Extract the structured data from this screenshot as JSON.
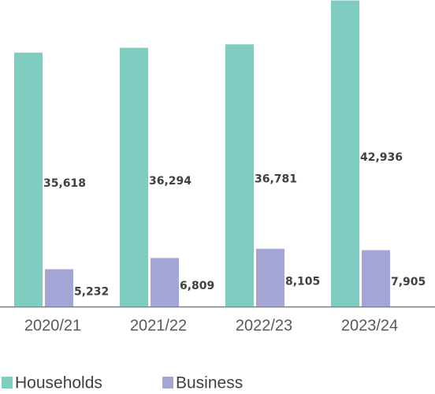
{
  "chart_data": {
    "type": "bar",
    "categories": [
      "2020/21",
      "2021/22",
      "2022/23",
      "2023/24"
    ],
    "series": [
      {
        "name": "Households",
        "color": "#7fcdc1",
        "values": [
          35618,
          36294,
          36781,
          42936
        ],
        "value_labels": [
          "35,618",
          "36,294",
          "36,781",
          "42,936"
        ]
      },
      {
        "name": "Business",
        "color": "#a3a6d4",
        "values": [
          5232,
          6809,
          8105,
          7905
        ],
        "value_labels": [
          "5,232",
          "6,809",
          "8,105",
          "7,905"
        ]
      }
    ],
    "ylim": [
      0,
      43000
    ]
  }
}
